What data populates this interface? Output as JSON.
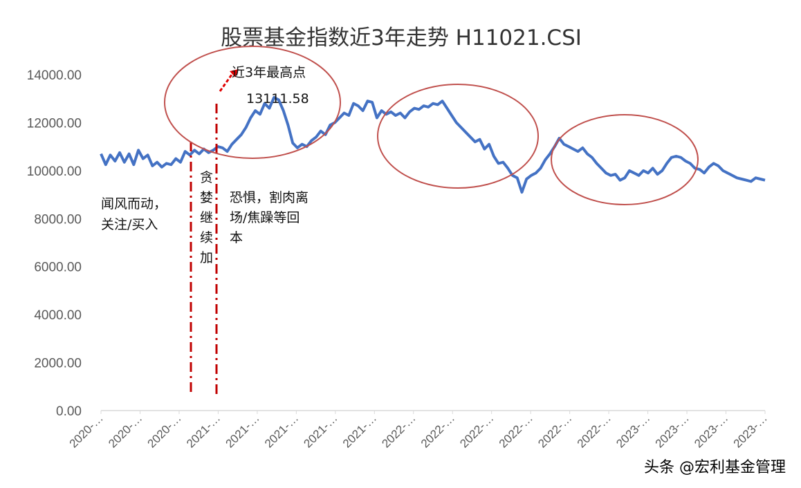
{
  "chart_data": {
    "type": "line",
    "title": "股票基金指数近3年走势  H11021.CSI",
    "xlabel": "",
    "ylabel": "",
    "ylim": [
      0,
      14000
    ],
    "y_ticks": [
      "0.00",
      "2000.00",
      "4000.00",
      "6000.00",
      "8000.00",
      "10000.00",
      "12000.00",
      "14000.00"
    ],
    "x_tick_labels": [
      "2020-…",
      "2020-…",
      "2020-…",
      "2021-…",
      "2021-…",
      "2021-…",
      "2021-…",
      "2021-…",
      "2022-…",
      "2022-…",
      "2022-…",
      "2022-…",
      "2022-…",
      "2022-…",
      "2023-…",
      "2023-…",
      "2023-…",
      "2023-…"
    ],
    "grid": false,
    "legend": "none",
    "line_color": "#4472C4",
    "series": [
      {
        "values": [
          10700,
          10250,
          10650,
          10400,
          10750,
          10350,
          10700,
          10250,
          10850,
          10500,
          10650,
          10200,
          10350,
          10150,
          10300,
          10250,
          10500,
          10350,
          10800,
          10650,
          10850,
          10700,
          10900,
          10750,
          10850,
          11000,
          10950,
          10800,
          11100,
          11300,
          11500,
          11800,
          12200,
          12500,
          12350,
          12800,
          12600,
          13050,
          12950,
          12500,
          11900,
          11150,
          10950,
          11100,
          11000,
          11250,
          11400,
          11650,
          11500,
          11900,
          12000,
          12200,
          12400,
          12300,
          12800,
          12700,
          12500,
          12900,
          12850,
          12200,
          12500,
          12350,
          12450,
          12300,
          12400,
          12200,
          12450,
          12600,
          12550,
          12700,
          12650,
          12800,
          12750,
          12900,
          12600,
          12300,
          12000,
          11800,
          11600,
          11400,
          11200,
          11300,
          10900,
          11100,
          10600,
          10300,
          10350,
          10100,
          9800,
          9700,
          9100,
          9650,
          9800,
          9900,
          10100,
          10450,
          10700,
          11000,
          11350,
          11100,
          11000,
          10900,
          10800,
          10950,
          10700,
          10550,
          10300,
          10100,
          9900,
          9800,
          9850,
          9600,
          9700,
          10000,
          9900,
          9800,
          10000,
          9900,
          10100,
          9850,
          10000,
          10300,
          10550,
          10600,
          10550,
          10400,
          10300,
          10100,
          10050,
          9900,
          10150,
          10300,
          10200,
          10000,
          9900,
          9800,
          9700,
          9650,
          9600,
          9550,
          9700,
          9650,
          9600
        ]
      }
    ]
  },
  "annotations": {
    "left_note": [
      "闻风而动，",
      "关注/买入"
    ],
    "greed_note": [
      "贪",
      "婪",
      "继",
      "续",
      "加"
    ],
    "fear_note": [
      "恐惧，割肉离",
      "场/焦躁等回",
      "本"
    ],
    "peak_label": "近3年最高点",
    "peak_value": "13111.58"
  },
  "watermark": "头条 @宏利基金管理",
  "colors": {
    "line": "#4472C4",
    "ellipse": "#C0504D",
    "dash_line": "#C00000",
    "arrow": "#E00000",
    "axis": "#D9D9D9"
  }
}
